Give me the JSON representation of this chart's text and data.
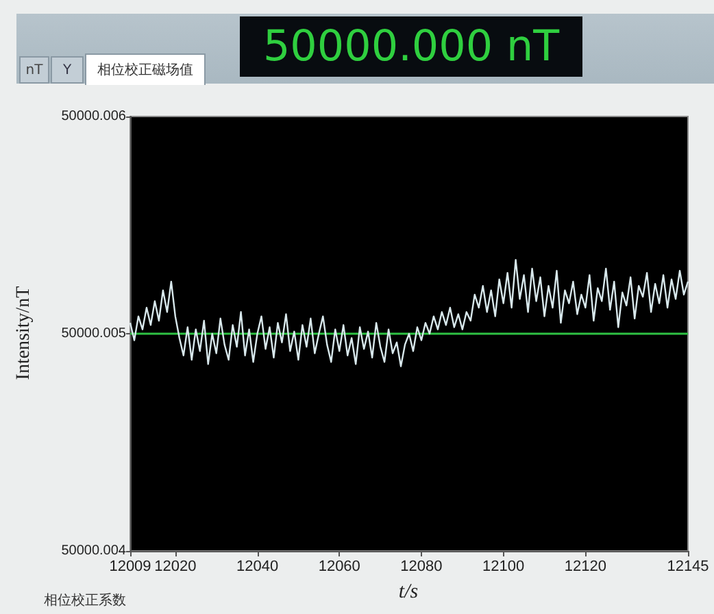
{
  "chart_data": {
    "type": "line",
    "xlabel": "t/s",
    "ylabel": "Intensity/nT",
    "annotations": [
      "nT",
      "Y",
      "相位校正磁场值",
      "50000.000 nT",
      "相位校正系数"
    ],
    "xlim": [
      12009,
      12145
    ],
    "xticks": [
      12009,
      12020,
      12040,
      12060,
      12080,
      12100,
      12120,
      12145
    ],
    "ylim": [
      50000.004,
      50000.006
    ],
    "yticks": [
      50000.004,
      50000.005,
      50000.006
    ],
    "grid": false,
    "ref_lines": [
      {
        "axis": "y",
        "value": 50000.005,
        "color": "#2fc244"
      }
    ],
    "x": [
      12009,
      12010,
      12011,
      12012,
      12013,
      12014,
      12015,
      12016,
      12017,
      12018,
      12019,
      12020,
      12021,
      12022,
      12023,
      12024,
      12025,
      12026,
      12027,
      12028,
      12029,
      12030,
      12031,
      12032,
      12033,
      12034,
      12035,
      12036,
      12037,
      12038,
      12039,
      12040,
      12041,
      12042,
      12043,
      12044,
      12045,
      12046,
      12047,
      12048,
      12049,
      12050,
      12051,
      12052,
      12053,
      12054,
      12055,
      12056,
      12057,
      12058,
      12059,
      12060,
      12061,
      12062,
      12063,
      12064,
      12065,
      12066,
      12067,
      12068,
      12069,
      12070,
      12071,
      12072,
      12073,
      12074,
      12075,
      12076,
      12077,
      12078,
      12079,
      12080,
      12081,
      12082,
      12083,
      12084,
      12085,
      12086,
      12087,
      12088,
      12089,
      12090,
      12091,
      12092,
      12093,
      12094,
      12095,
      12096,
      12097,
      12098,
      12099,
      12100,
      12101,
      12102,
      12103,
      12104,
      12105,
      12106,
      12107,
      12108,
      12109,
      12110,
      12111,
      12112,
      12113,
      12114,
      12115,
      12116,
      12117,
      12118,
      12119,
      12120,
      12121,
      12122,
      12123,
      12124,
      12125,
      12126,
      12127,
      12128,
      12129,
      12130,
      12131,
      12132,
      12133,
      12134,
      12135,
      12136,
      12137,
      12138,
      12139,
      12140,
      12141,
      12142,
      12143,
      12144,
      12145
    ],
    "series": [
      {
        "color": "#d8e8ec",
        "values": [
          50000.00505,
          50000.00497,
          50000.00508,
          50000.00502,
          50000.00512,
          50000.00504,
          50000.00515,
          50000.00506,
          50000.0052,
          50000.0051,
          50000.00524,
          50000.00508,
          50000.00498,
          50000.0049,
          50000.00503,
          50000.00488,
          50000.00502,
          50000.00492,
          50000.00506,
          50000.00486,
          50000.005,
          50000.00491,
          50000.00507,
          50000.00495,
          50000.00488,
          50000.00504,
          50000.00494,
          50000.0051,
          50000.0049,
          50000.00502,
          50000.00487,
          50000.005,
          50000.00508,
          50000.00493,
          50000.00503,
          50000.00489,
          50000.00505,
          50000.00496,
          50000.00509,
          50000.00492,
          50000.00501,
          50000.00488,
          50000.00504,
          50000.00494,
          50000.00507,
          50000.00491,
          50000.005,
          50000.00508,
          50000.00495,
          50000.00487,
          50000.00502,
          50000.00492,
          50000.00504,
          50000.0049,
          50000.00498,
          50000.00486,
          50000.00503,
          50000.00493,
          50000.00501,
          50000.00489,
          50000.00505,
          50000.00494,
          50000.00487,
          50000.00502,
          50000.00491,
          50000.00496,
          50000.00485,
          50000.00495,
          50000.005,
          50000.00492,
          50000.00503,
          50000.00497,
          50000.00505,
          50000.005,
          50000.00508,
          50000.00502,
          50000.0051,
          50000.00504,
          50000.00512,
          50000.00503,
          50000.00509,
          50000.00502,
          50000.0051,
          50000.00506,
          50000.00518,
          50000.00512,
          50000.00522,
          50000.0051,
          50000.0052,
          50000.00508,
          50000.00525,
          50000.00514,
          50000.00528,
          50000.00512,
          50000.00534,
          50000.00516,
          50000.00527,
          50000.0051,
          50000.0053,
          50000.00515,
          50000.00526,
          50000.00508,
          50000.00522,
          50000.00512,
          50000.00529,
          50000.00505,
          50000.0052,
          50000.00514,
          50000.00524,
          50000.00509,
          50000.00518,
          50000.00512,
          50000.00527,
          50000.00506,
          50000.00521,
          50000.00515,
          50000.0053,
          50000.00511,
          50000.00524,
          50000.00503,
          50000.00519,
          50000.00513,
          50000.00526,
          50000.00507,
          50000.00522,
          50000.00517,
          50000.00528,
          50000.0051,
          50000.00523,
          50000.00514,
          50000.00527,
          50000.00512,
          50000.00525,
          50000.00516,
          50000.00529,
          50000.00518,
          50000.00524
        ]
      }
    ]
  }
}
